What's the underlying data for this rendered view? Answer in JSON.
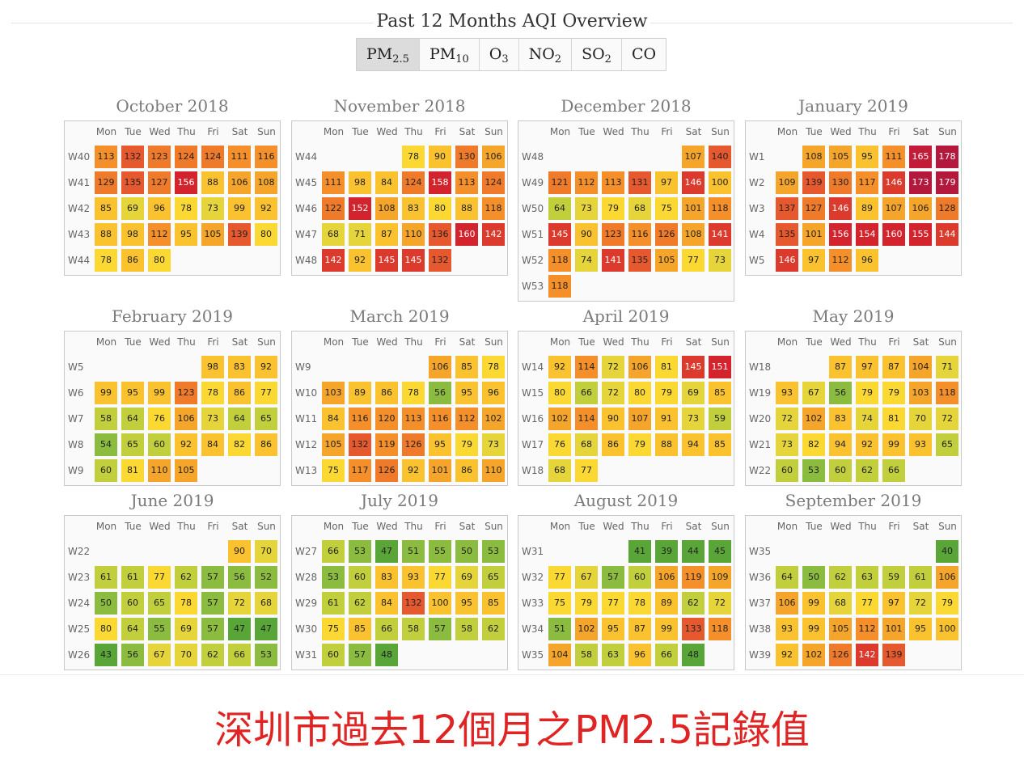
{
  "header": {
    "title": "Past 12 Months AQI Overview"
  },
  "tabs": [
    {
      "base": "PM",
      "sub": "2.5",
      "active": true
    },
    {
      "base": "PM",
      "sub": "10",
      "active": false
    },
    {
      "base": "O",
      "sub": "3",
      "active": false
    },
    {
      "base": "NO",
      "sub": "2",
      "active": false
    },
    {
      "base": "SO",
      "sub": "2",
      "active": false
    },
    {
      "base": "CO",
      "sub": "",
      "active": false
    }
  ],
  "day_labels": [
    "Mon",
    "Tue",
    "Wed",
    "Thu",
    "Fri",
    "Sat",
    "Sun"
  ],
  "months": [
    {
      "title": "October 2018",
      "weeks": [
        {
          "label": "W40",
          "start": 0,
          "values": [
            113,
            132,
            123,
            124,
            124,
            111,
            116
          ]
        },
        {
          "label": "W41",
          "start": 0,
          "values": [
            129,
            135,
            127,
            156,
            88,
            106,
            108
          ]
        },
        {
          "label": "W42",
          "start": 0,
          "values": [
            85,
            69,
            96,
            78,
            73,
            99,
            92
          ]
        },
        {
          "label": "W43",
          "start": 0,
          "values": [
            88,
            98,
            112,
            95,
            105,
            139,
            80
          ]
        },
        {
          "label": "W44",
          "start": 0,
          "values": [
            78,
            86,
            80
          ]
        }
      ]
    },
    {
      "title": "November 2018",
      "weeks": [
        {
          "label": "W44",
          "start": 3,
          "values": [
            78,
            90,
            130,
            106
          ]
        },
        {
          "label": "W45",
          "start": 0,
          "values": [
            111,
            98,
            84,
            124,
            158,
            113,
            124
          ]
        },
        {
          "label": "W46",
          "start": 0,
          "values": [
            122,
            152,
            108,
            83,
            80,
            88,
            118
          ]
        },
        {
          "label": "W47",
          "start": 0,
          "values": [
            68,
            71,
            87,
            110,
            136,
            160,
            142
          ]
        },
        {
          "label": "W48",
          "start": 0,
          "values": [
            142,
            92,
            145,
            145,
            132
          ]
        }
      ]
    },
    {
      "title": "December 2018",
      "weeks": [
        {
          "label": "W48",
          "start": 5,
          "values": [
            107,
            140
          ]
        },
        {
          "label": "W49",
          "start": 0,
          "values": [
            121,
            112,
            113,
            131,
            97,
            146,
            100
          ]
        },
        {
          "label": "W50",
          "start": 0,
          "values": [
            64,
            73,
            79,
            68,
            75,
            101,
            118
          ]
        },
        {
          "label": "W51",
          "start": 0,
          "values": [
            145,
            90,
            123,
            116,
            126,
            108,
            141
          ]
        },
        {
          "label": "W52",
          "start": 0,
          "values": [
            118,
            74,
            141,
            135,
            105,
            77,
            73
          ]
        },
        {
          "label": "W53",
          "start": 0,
          "values": [
            118
          ]
        }
      ]
    },
    {
      "title": "January 2019",
      "weeks": [
        {
          "label": "W1",
          "start": 1,
          "values": [
            108,
            105,
            95,
            111,
            165,
            178
          ]
        },
        {
          "label": "W2",
          "start": 0,
          "values": [
            109,
            139,
            130,
            117,
            146,
            173,
            179
          ]
        },
        {
          "label": "W3",
          "start": 0,
          "values": [
            137,
            127,
            146,
            89,
            107,
            106,
            128
          ]
        },
        {
          "label": "W4",
          "start": 0,
          "values": [
            135,
            101,
            156,
            154,
            160,
            155,
            144
          ]
        },
        {
          "label": "W5",
          "start": 0,
          "values": [
            146,
            97,
            112,
            96
          ]
        }
      ]
    },
    {
      "title": "February 2019",
      "weeks": [
        {
          "label": "W5",
          "start": 4,
          "values": [
            98,
            83,
            92
          ]
        },
        {
          "label": "W6",
          "start": 0,
          "values": [
            99,
            95,
            99,
            123,
            78,
            86,
            77
          ]
        },
        {
          "label": "W7",
          "start": 0,
          "values": [
            58,
            64,
            76,
            106,
            73,
            64,
            65
          ]
        },
        {
          "label": "W8",
          "start": 0,
          "values": [
            54,
            65,
            60,
            92,
            84,
            82,
            86
          ]
        },
        {
          "label": "W9",
          "start": 0,
          "values": [
            60,
            81,
            110,
            105
          ]
        }
      ]
    },
    {
      "title": "March 2019",
      "weeks": [
        {
          "label": "W9",
          "start": 4,
          "values": [
            106,
            85,
            78
          ]
        },
        {
          "label": "W10",
          "start": 0,
          "values": [
            103,
            89,
            86,
            78,
            56,
            95,
            96
          ]
        },
        {
          "label": "W11",
          "start": 0,
          "values": [
            84,
            116,
            120,
            113,
            116,
            112,
            102
          ]
        },
        {
          "label": "W12",
          "start": 0,
          "values": [
            105,
            132,
            119,
            126,
            95,
            79,
            73
          ]
        },
        {
          "label": "W13",
          "start": 0,
          "values": [
            75,
            117,
            126,
            92,
            101,
            86,
            110
          ]
        }
      ]
    },
    {
      "title": "April 2019",
      "weeks": [
        {
          "label": "W14",
          "start": 0,
          "values": [
            92,
            114,
            72,
            106,
            81,
            145,
            151
          ]
        },
        {
          "label": "W15",
          "start": 0,
          "values": [
            80,
            66,
            72,
            80,
            79,
            69,
            85
          ]
        },
        {
          "label": "W16",
          "start": 0,
          "values": [
            102,
            114,
            90,
            107,
            91,
            73,
            59
          ]
        },
        {
          "label": "W17",
          "start": 0,
          "values": [
            76,
            68,
            86,
            79,
            88,
            94,
            85
          ]
        },
        {
          "label": "W18",
          "start": 0,
          "values": [
            68,
            77
          ]
        }
      ]
    },
    {
      "title": "May 2019",
      "weeks": [
        {
          "label": "W18",
          "start": 2,
          "values": [
            87,
            97,
            87,
            104,
            71
          ]
        },
        {
          "label": "W19",
          "start": 0,
          "values": [
            93,
            67,
            56,
            79,
            79,
            103,
            118
          ]
        },
        {
          "label": "W20",
          "start": 0,
          "values": [
            72,
            102,
            83,
            74,
            81,
            70,
            72
          ]
        },
        {
          "label": "W21",
          "start": 0,
          "values": [
            73,
            82,
            94,
            92,
            99,
            93,
            65
          ]
        },
        {
          "label": "W22",
          "start": 0,
          "values": [
            60,
            53,
            60,
            62,
            66
          ]
        }
      ]
    },
    {
      "title": "June 2019",
      "weeks": [
        {
          "label": "W22",
          "start": 5,
          "values": [
            90,
            70
          ]
        },
        {
          "label": "W23",
          "start": 0,
          "values": [
            61,
            61,
            77,
            62,
            57,
            56,
            52
          ]
        },
        {
          "label": "W24",
          "start": 0,
          "values": [
            50,
            60,
            65,
            78,
            57,
            72,
            68
          ]
        },
        {
          "label": "W25",
          "start": 0,
          "values": [
            80,
            64,
            55,
            69,
            57,
            47,
            47
          ]
        },
        {
          "label": "W26",
          "start": 0,
          "values": [
            43,
            56,
            67,
            70,
            62,
            66,
            53
          ]
        }
      ]
    },
    {
      "title": "July 2019",
      "weeks": [
        {
          "label": "W27",
          "start": 0,
          "values": [
            66,
            53,
            47,
            51,
            55,
            50,
            53
          ]
        },
        {
          "label": "W28",
          "start": 0,
          "values": [
            53,
            60,
            83,
            93,
            77,
            69,
            65
          ]
        },
        {
          "label": "W29",
          "start": 0,
          "values": [
            61,
            62,
            84,
            132,
            100,
            95,
            85
          ]
        },
        {
          "label": "W30",
          "start": 0,
          "values": [
            75,
            85,
            66,
            58,
            57,
            58,
            62
          ]
        },
        {
          "label": "W31",
          "start": 0,
          "values": [
            60,
            57,
            48
          ]
        }
      ]
    },
    {
      "title": "August 2019",
      "weeks": [
        {
          "label": "W31",
          "start": 3,
          "values": [
            41,
            39,
            44,
            45
          ]
        },
        {
          "label": "W32",
          "start": 0,
          "values": [
            77,
            67,
            57,
            60,
            106,
            119,
            109
          ]
        },
        {
          "label": "W33",
          "start": 0,
          "values": [
            75,
            79,
            77,
            78,
            89,
            62,
            72
          ]
        },
        {
          "label": "W34",
          "start": 0,
          "values": [
            51,
            102,
            95,
            87,
            99,
            133,
            118
          ]
        },
        {
          "label": "W35",
          "start": 0,
          "values": [
            104,
            58,
            63,
            96,
            66,
            48
          ]
        }
      ]
    },
    {
      "title": "September 2019",
      "weeks": [
        {
          "label": "W35",
          "start": 6,
          "values": [
            40
          ]
        },
        {
          "label": "W36",
          "start": 0,
          "values": [
            64,
            50,
            62,
            63,
            59,
            61,
            106
          ]
        },
        {
          "label": "W37",
          "start": 0,
          "values": [
            106,
            99,
            68,
            77,
            97,
            72,
            79
          ]
        },
        {
          "label": "W38",
          "start": 0,
          "values": [
            93,
            99,
            105,
            112,
            101,
            95,
            100
          ]
        },
        {
          "label": "W39",
          "start": 0,
          "values": [
            92,
            102,
            126,
            142,
            139
          ]
        }
      ]
    }
  ],
  "caption": "深圳市過去12個月之PM2.5記錄值"
}
